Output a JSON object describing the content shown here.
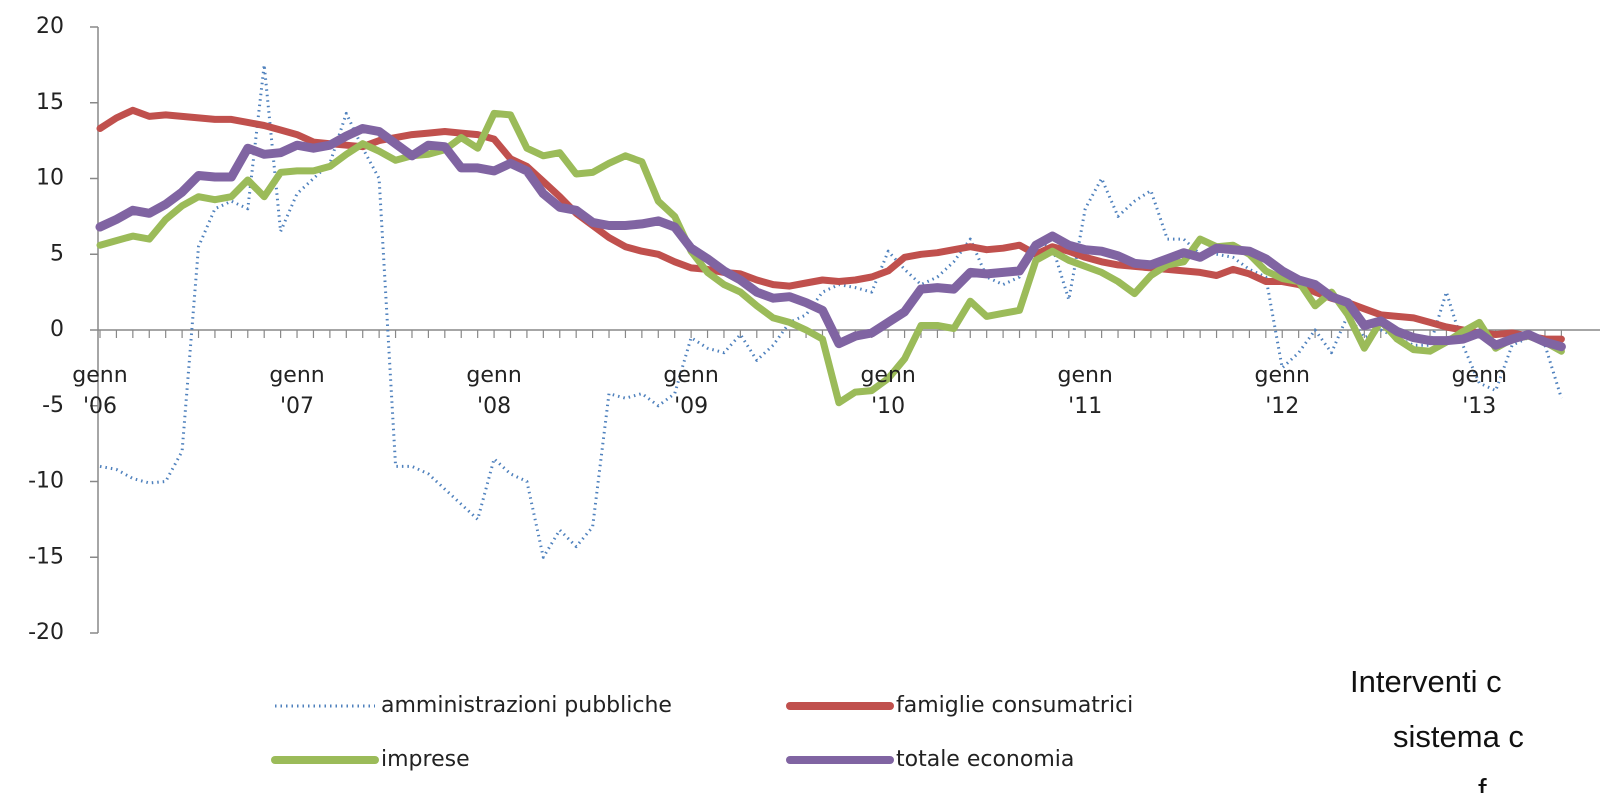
{
  "chart_data": {
    "type": "line",
    "categories": [
      "genn\n'06",
      null,
      null,
      null,
      null,
      null,
      null,
      null,
      null,
      null,
      null,
      null,
      "genn\n'07",
      null,
      null,
      null,
      null,
      null,
      null,
      null,
      null,
      null,
      null,
      null,
      "genn\n'08",
      null,
      null,
      null,
      null,
      null,
      null,
      null,
      null,
      null,
      null,
      null,
      "genn\n'09",
      null,
      null,
      null,
      null,
      null,
      null,
      null,
      null,
      null,
      null,
      null,
      "genn\n'10",
      null,
      null,
      null,
      null,
      null,
      null,
      null,
      null,
      null,
      null,
      null,
      "genn\n'11",
      null,
      null,
      null,
      null,
      null,
      null,
      null,
      null,
      null,
      null,
      null,
      "genn\n'12",
      null,
      null,
      null,
      null,
      null,
      null,
      null,
      null,
      null,
      null,
      null,
      "genn\n'13",
      null,
      null,
      null,
      null,
      null
    ],
    "series": [
      {
        "name": "amministrazioni pubbliche",
        "color": "#4f81bd",
        "dash": "dotted",
        "values": [
          -9.0,
          -9.2,
          -9.8,
          -10.1,
          -10.0,
          -8.0,
          5.5,
          8.0,
          8.5,
          8.0,
          17.5,
          6.5,
          9.0,
          10.0,
          11.0,
          14.3,
          12.0,
          10.0,
          -9.0,
          -9.0,
          -9.5,
          -10.5,
          -11.5,
          -12.5,
          -8.5,
          -9.5,
          -10.0,
          -15.0,
          -13.2,
          -14.3,
          -13.0,
          -4.2,
          -4.5,
          -4.2,
          -5.0,
          -4.2,
          -0.5,
          -1.2,
          -1.5,
          -0.3,
          -2.0,
          -1.0,
          0.5,
          1.0,
          2.5,
          3.0,
          2.8,
          2.5,
          5.2,
          4.0,
          3.0,
          3.5,
          4.5,
          6.0,
          3.5,
          3.0,
          3.5,
          5.8,
          5.5,
          2.0,
          8.0,
          10.0,
          7.5,
          8.5,
          9.2,
          6.0,
          6.0,
          5.0,
          5.0,
          4.8,
          4.0,
          3.5,
          -2.5,
          -1.5,
          0.0,
          -1.5,
          1.0,
          -0.5,
          0.0,
          -0.5,
          -1.0,
          -1.0,
          2.5,
          -1.0,
          -3.5,
          -4.0,
          -1.0,
          -0.5,
          -1.0,
          -4.5
        ]
      },
      {
        "name": "famiglie consumatrici",
        "color": "#c0504d",
        "values": [
          13.3,
          14.0,
          14.5,
          14.1,
          14.2,
          14.1,
          14.0,
          13.9,
          13.9,
          13.7,
          13.5,
          13.2,
          12.9,
          12.4,
          12.3,
          12.2,
          12.1,
          12.5,
          12.7,
          12.9,
          13.0,
          13.1,
          13.0,
          12.9,
          12.6,
          11.3,
          10.8,
          9.8,
          8.8,
          7.7,
          6.9,
          6.1,
          5.5,
          5.2,
          5.0,
          4.5,
          4.1,
          4.0,
          3.8,
          3.7,
          3.3,
          3.0,
          2.9,
          3.1,
          3.3,
          3.2,
          3.3,
          3.5,
          3.9,
          4.8,
          5.0,
          5.1,
          5.3,
          5.5,
          5.3,
          5.4,
          5.6,
          5.0,
          5.5,
          5.2,
          4.8,
          4.5,
          4.3,
          4.2,
          4.1,
          4.0,
          3.9,
          3.8,
          3.6,
          4.0,
          3.7,
          3.2,
          3.2,
          3.0,
          2.5,
          2.1,
          1.8,
          1.4,
          1.0,
          0.9,
          0.8,
          0.5,
          0.2,
          0.0,
          -0.2,
          -0.3,
          -0.2,
          -0.4,
          -0.6,
          -0.6
        ]
      },
      {
        "name": "imprese",
        "color": "#9bbb59",
        "values": [
          5.6,
          5.9,
          6.2,
          6.0,
          7.3,
          8.2,
          8.8,
          8.6,
          8.8,
          9.9,
          8.8,
          10.4,
          10.5,
          10.5,
          10.8,
          11.6,
          12.3,
          11.8,
          11.2,
          11.5,
          11.6,
          11.9,
          12.7,
          12.0,
          14.3,
          14.2,
          12.0,
          11.5,
          11.7,
          10.3,
          10.4,
          11.0,
          11.5,
          11.1,
          8.5,
          7.5,
          5.2,
          3.8,
          3.0,
          2.5,
          1.6,
          0.8,
          0.5,
          0.0,
          -0.6,
          -4.8,
          -4.1,
          -4.0,
          -3.2,
          -1.9,
          0.3,
          0.3,
          0.1,
          1.9,
          0.9,
          1.1,
          1.3,
          4.6,
          5.2,
          4.6,
          4.2,
          3.8,
          3.2,
          2.4,
          3.6,
          4.3,
          4.5,
          6.0,
          5.5,
          5.6,
          5.0,
          3.9,
          3.4,
          3.2,
          1.6,
          2.5,
          1.0,
          -1.2,
          0.6,
          -0.6,
          -1.3,
          -1.4,
          -0.8,
          -0.1,
          0.5,
          -1.2,
          -0.6,
          -0.4,
          -0.8,
          -1.4
        ]
      },
      {
        "name": "totale economia",
        "color": "#8064a2",
        "values": [
          6.8,
          7.3,
          7.9,
          7.7,
          8.3,
          9.1,
          10.2,
          10.1,
          10.1,
          12.0,
          11.6,
          11.7,
          12.2,
          12.0,
          12.2,
          12.8,
          13.3,
          13.1,
          12.3,
          11.5,
          12.2,
          12.1,
          10.7,
          10.7,
          10.5,
          11.0,
          10.5,
          9.0,
          8.1,
          7.9,
          7.1,
          6.9,
          6.9,
          7.0,
          7.2,
          6.8,
          5.4,
          4.7,
          3.9,
          3.3,
          2.5,
          2.1,
          2.2,
          1.8,
          1.3,
          -0.9,
          -0.4,
          -0.2,
          0.5,
          1.2,
          2.7,
          2.8,
          2.7,
          3.8,
          3.7,
          3.8,
          3.9,
          5.6,
          6.2,
          5.6,
          5.3,
          5.2,
          4.9,
          4.4,
          4.3,
          4.7,
          5.1,
          4.8,
          5.4,
          5.3,
          5.2,
          4.7,
          3.9,
          3.3,
          3.0,
          2.2,
          1.8,
          0.3,
          0.6,
          -0.1,
          -0.5,
          -0.7,
          -0.7,
          -0.6,
          -0.2,
          -1.0,
          -0.6,
          -0.3,
          -0.8,
          -1.1
        ]
      }
    ],
    "ylim": [
      -20,
      20
    ],
    "yticks": [
      -20,
      -15,
      -10,
      -5,
      0,
      5,
      10,
      15,
      20
    ],
    "legend": "bottom",
    "annotation": [
      "Interventi c",
      "sistema c",
      "f"
    ]
  }
}
